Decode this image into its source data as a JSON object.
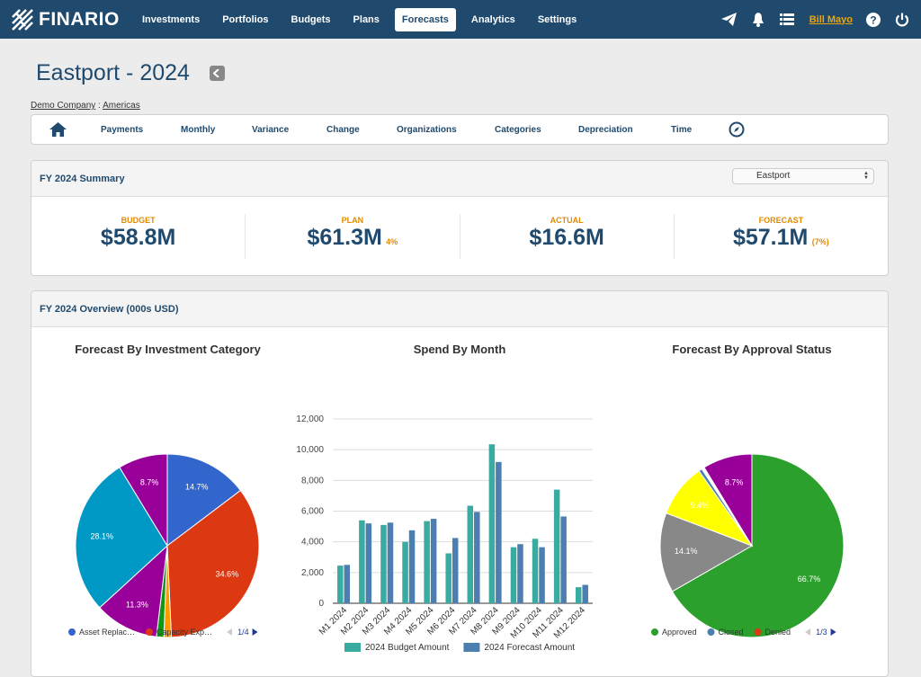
{
  "app": {
    "logo_text": "FINARIO"
  },
  "nav": {
    "items": [
      {
        "label": "Investments"
      },
      {
        "label": "Portfolios"
      },
      {
        "label": "Budgets"
      },
      {
        "label": "Plans"
      },
      {
        "label": "Forecasts",
        "active": true
      },
      {
        "label": "Analytics"
      },
      {
        "label": "Settings"
      }
    ]
  },
  "user": {
    "name": "Bill Mayo"
  },
  "page": {
    "title": "Eastport - 2024",
    "breadcrumb": {
      "company": "Demo Company",
      "separator": " : ",
      "region": "Americas"
    }
  },
  "subnav": {
    "items": [
      "Payments",
      "Monthly",
      "Variance",
      "Change",
      "Organizations",
      "Categories",
      "Depreciation",
      "Time"
    ]
  },
  "summary": {
    "title": "FY 2024 Summary",
    "select_value": "Eastport",
    "cells": [
      {
        "label": "BUDGET",
        "value": "$58.8M",
        "note": ""
      },
      {
        "label": "PLAN",
        "value": "$61.3M",
        "note": "4%"
      },
      {
        "label": "ACTUAL",
        "value": "$16.6M",
        "note": ""
      },
      {
        "label": "FORECAST",
        "value": "$57.1M",
        "note": "(7%)"
      }
    ]
  },
  "overview": {
    "title": "FY 2024 Overview (000s USD)"
  },
  "colors": {
    "brand": "#1f4a6e",
    "accent": "#e08a00",
    "budget_series": "#3aaba0",
    "forecast_series": "#4a7fb0"
  },
  "chart_data": [
    {
      "type": "pie",
      "title": "Forecast By Investment Category",
      "slices": [
        {
          "label": "",
          "value": 14.7,
          "color": "#3366cc",
          "text": "14.7%"
        },
        {
          "label": "",
          "value": 34.6,
          "color": "#dc3912",
          "text": "34.6%"
        },
        {
          "label": "",
          "value": 1.3,
          "color": "#ff9900",
          "text": ""
        },
        {
          "label": "",
          "value": 1.3,
          "color": "#109618",
          "text": ""
        },
        {
          "label": "",
          "value": 11.3,
          "color": "#990099",
          "text": "11.3%"
        },
        {
          "label": "",
          "value": 28.1,
          "color": "#0099c6",
          "text": "28.1%"
        },
        {
          "label": "",
          "value": 8.7,
          "color": "#990099",
          "text": "8.7%"
        }
      ],
      "legend": [
        {
          "label": "Asset Replac…",
          "color": "#3366cc"
        },
        {
          "label": "Capacity Exp…",
          "color": "#dc3912"
        }
      ],
      "legend_page": "1/4"
    },
    {
      "type": "bar",
      "title": "Spend By Month",
      "categories": [
        "M1 2024",
        "M2 2024",
        "M3 2024",
        "M4 2024",
        "M5 2024",
        "M6 2024",
        "M7 2024",
        "M8 2024",
        "M9 2024",
        "M10 2024",
        "M11 2024",
        "M12 2024"
      ],
      "series": [
        {
          "name": "2024 Budget Amount",
          "color": "#3aaba0",
          "values": [
            2450,
            5400,
            5100,
            4000,
            5350,
            3250,
            6350,
            10350,
            3650,
            4200,
            7400,
            1050
          ]
        },
        {
          "name": "2024 Forecast Amount",
          "color": "#4a7fb0",
          "values": [
            2500,
            5200,
            5250,
            4750,
            5500,
            4250,
            5950,
            9200,
            3850,
            3650,
            5650,
            1200
          ]
        }
      ],
      "yticks": [
        "0",
        "2,000",
        "4,000",
        "6,000",
        "8,000",
        "10,000",
        "12,000"
      ],
      "ylim": [
        0,
        12000
      ]
    },
    {
      "type": "pie",
      "title": "Forecast By Approval Status",
      "slices": [
        {
          "label": "Approved",
          "value": 66.7,
          "color": "#2ca02c",
          "text": "66.7%"
        },
        {
          "label": "",
          "value": 14.1,
          "color": "#888888",
          "text": "14.1%"
        },
        {
          "label": "",
          "value": 9.4,
          "color": "#ffff00",
          "text": "9.4%"
        },
        {
          "label": "Closed",
          "value": 0.6,
          "color": "#4a7fb0",
          "text": ""
        },
        {
          "label": "",
          "value": 0.5,
          "color": "#ffffff",
          "text": ""
        },
        {
          "label": "",
          "value": 8.7,
          "color": "#990099",
          "text": "8.7%"
        }
      ],
      "legend": [
        {
          "label": "Approved",
          "color": "#2ca02c"
        },
        {
          "label": "Closed",
          "color": "#4a7fb0"
        },
        {
          "label": "Denied",
          "color": "#dc3912"
        }
      ],
      "legend_page": "1/3"
    }
  ]
}
